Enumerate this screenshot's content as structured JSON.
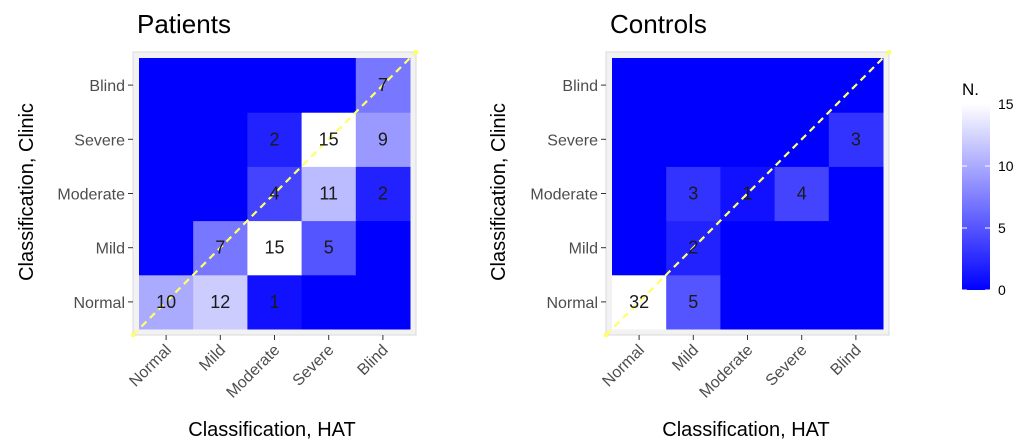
{
  "chart_data": [
    {
      "type": "heatmap",
      "title": "Patients",
      "xlabel": "Classification, HAT",
      "ylabel": "Classification, Clinic",
      "x_categories": [
        "Normal",
        "Mild",
        "Moderate",
        "Severe",
        "Blind"
      ],
      "y_categories": [
        "Normal",
        "Mild",
        "Moderate",
        "Severe",
        "Blind"
      ],
      "cells": [
        {
          "x": "Normal",
          "y": "Normal",
          "value": 10
        },
        {
          "x": "Mild",
          "y": "Normal",
          "value": 12
        },
        {
          "x": "Moderate",
          "y": "Normal",
          "value": 1
        },
        {
          "x": "Mild",
          "y": "Mild",
          "value": 7
        },
        {
          "x": "Moderate",
          "y": "Mild",
          "value": 15
        },
        {
          "x": "Severe",
          "y": "Mild",
          "value": 5
        },
        {
          "x": "Moderate",
          "y": "Moderate",
          "value": 4
        },
        {
          "x": "Severe",
          "y": "Moderate",
          "value": 11
        },
        {
          "x": "Blind",
          "y": "Moderate",
          "value": 2
        },
        {
          "x": "Moderate",
          "y": "Severe",
          "value": 2
        },
        {
          "x": "Severe",
          "y": "Severe",
          "value": 15
        },
        {
          "x": "Blind",
          "y": "Severe",
          "value": 9
        },
        {
          "x": "Blind",
          "y": "Blind",
          "value": 7
        }
      ],
      "diagonal": true
    },
    {
      "type": "heatmap",
      "title": "Controls",
      "xlabel": "Classification, HAT",
      "ylabel": "Classification, Clinic",
      "x_categories": [
        "Normal",
        "Mild",
        "Moderate",
        "Severe",
        "Blind"
      ],
      "y_categories": [
        "Normal",
        "Mild",
        "Moderate",
        "Severe",
        "Blind"
      ],
      "cells": [
        {
          "x": "Normal",
          "y": "Normal",
          "value": 32
        },
        {
          "x": "Mild",
          "y": "Normal",
          "value": 5
        },
        {
          "x": "Mild",
          "y": "Mild",
          "value": 2
        },
        {
          "x": "Mild",
          "y": "Moderate",
          "value": 3
        },
        {
          "x": "Moderate",
          "y": "Moderate",
          "value": 1
        },
        {
          "x": "Severe",
          "y": "Moderate",
          "value": 4
        },
        {
          "x": "Blind",
          "y": "Severe",
          "value": 3
        }
      ],
      "diagonal": true
    }
  ],
  "legend": {
    "title": "N.",
    "ticks": [
      0,
      5,
      10,
      15
    ],
    "range": [
      0,
      15
    ],
    "low_color": "#0000ff",
    "high_color": "#ffffff"
  },
  "colors": {
    "empty_cell": "#0000ff",
    "diagonal": "#ffff66",
    "panel_border": "#d9d9d9"
  }
}
